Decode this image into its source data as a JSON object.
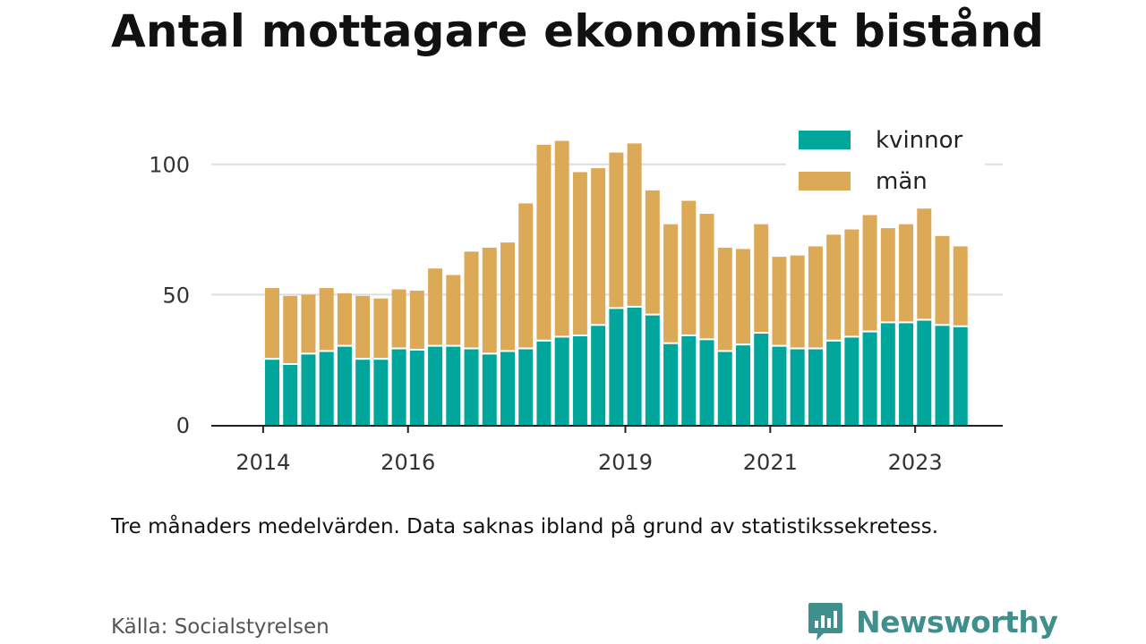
{
  "chart_data": {
    "type": "bar",
    "stacked": true,
    "title": "Antal mottagare ekonomiskt bistånd",
    "xlabel": "",
    "ylabel": "",
    "ylim": [
      0,
      120
    ],
    "yticks": [
      0,
      50,
      100
    ],
    "xtick_labels": [
      {
        "label": "2014",
        "index": -0.5
      },
      {
        "label": "2016",
        "index": 7.5
      },
      {
        "label": "2019",
        "index": 19.5
      },
      {
        "label": "2021",
        "index": 27.5
      },
      {
        "label": "2023",
        "index": 35.5
      }
    ],
    "grid": true,
    "legend_position": "top-right",
    "colors": {
      "kvinnor": "#00a69c",
      "man": "#dcaa57",
      "grid": "#dddddd",
      "axis": "#222222"
    },
    "series": [
      {
        "name": "kvinnor",
        "values": [
          25,
          23,
          27,
          28,
          30,
          25,
          25,
          29,
          28.5,
          30,
          30,
          29,
          27,
          28,
          29,
          32,
          33.5,
          34,
          38,
          44.5,
          45,
          42,
          31,
          34,
          32.5,
          28,
          30.5,
          35,
          30,
          29,
          29,
          32,
          33.5,
          35.5,
          39,
          39,
          40,
          38,
          37.5
        ]
      },
      {
        "name": "män",
        "values": [
          27.5,
          26.5,
          23,
          24.5,
          20.5,
          24.5,
          23.5,
          23,
          23,
          30,
          27.5,
          37.5,
          41,
          42,
          56,
          75.5,
          75.5,
          63,
          60.5,
          60,
          63,
          48,
          46,
          52,
          48.5,
          40,
          37,
          42,
          34.5,
          36,
          39.5,
          41,
          41.5,
          45,
          36.5,
          38,
          43,
          34.5,
          31
        ]
      }
    ]
  },
  "note": "Tre månaders medelvärden. Data saknas ibland på grund av statistikssekretess.",
  "source": "Källa: Socialstyrelsen",
  "brand": {
    "name": "Newsworthy",
    "icon": "newsworthy-logo-icon",
    "color": "#3f8f8c"
  }
}
